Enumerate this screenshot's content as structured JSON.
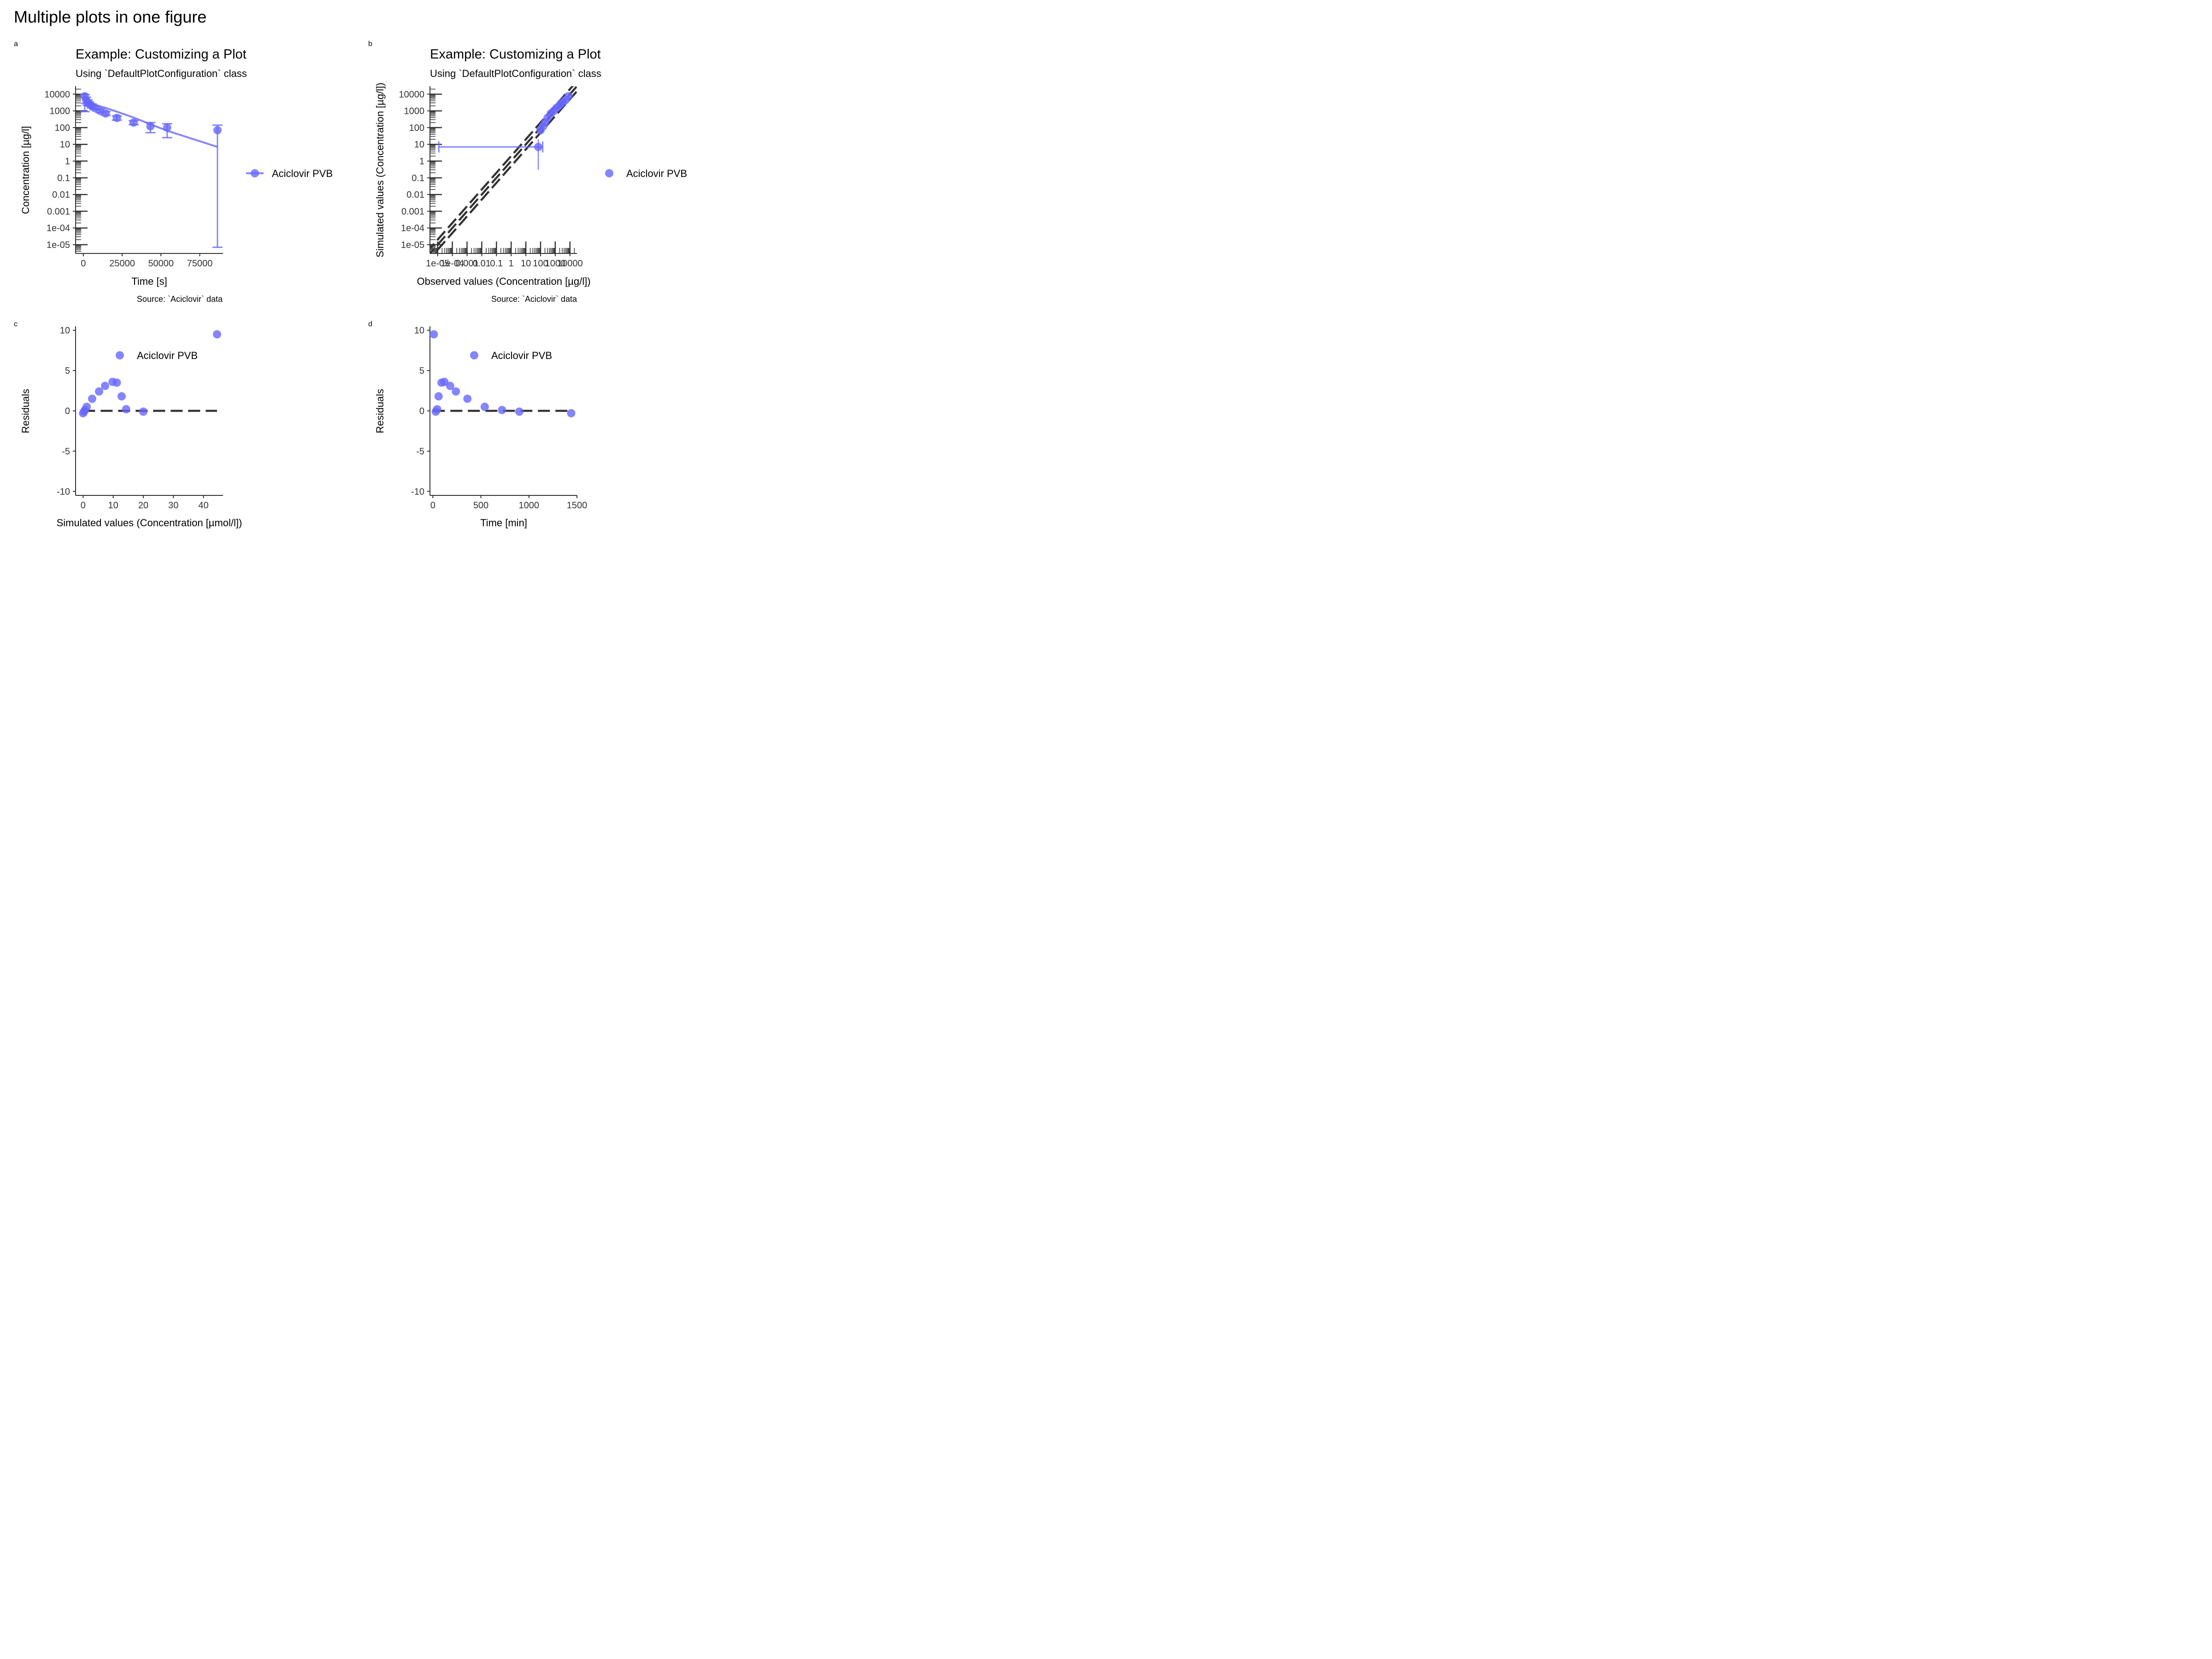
{
  "figure": {
    "title": "Multiple plots in one figure"
  },
  "colors": {
    "series": "#6666ff",
    "axis": "#333333",
    "identity": "#333333"
  },
  "chart_data": [
    {
      "tag": "a",
      "type": "line",
      "title": "Example: Customizing a Plot",
      "subtitle": "Using `DefaultPlotConfiguration` class",
      "caption": "Source: `Aciclovir` data",
      "xlabel": "Time [s]",
      "ylabel": "Concentration [µg/l]",
      "y_scale": "log10",
      "xlim": [
        -5000,
        90000
      ],
      "ylim": [
        3e-06,
        30000
      ],
      "xticks": [
        {
          "v": 0,
          "label": "0"
        },
        {
          "v": 25000,
          "label": "25000"
        },
        {
          "v": 50000,
          "label": "50000"
        },
        {
          "v": 75000,
          "label": "75000"
        }
      ],
      "yticks": [
        {
          "v": 10000,
          "label": "10000"
        },
        {
          "v": 1000,
          "label": "1000"
        },
        {
          "v": 100,
          "label": "100"
        },
        {
          "v": 10,
          "label": "10"
        },
        {
          "v": 1,
          "label": "1"
        },
        {
          "v": 0.1,
          "label": "0.1"
        },
        {
          "v": 0.01,
          "label": "0.01"
        },
        {
          "v": 0.001,
          "label": "0.001"
        },
        {
          "v": 0.0001,
          "label": "1e-04"
        },
        {
          "v": 1e-05,
          "label": "1e-05"
        }
      ],
      "legend": {
        "position": "right",
        "entries": [
          "Aciclovir PVB"
        ]
      },
      "series": [
        {
          "name": "Aciclovir PVB",
          "line": {
            "x": [
              0,
              900,
              1800,
              3600,
              5400,
              7200,
              10800,
              14400,
              21600,
              32400,
              43200,
              54000,
              86400
            ],
            "y": [
              8000,
              6000,
              4500,
              3400,
              2800,
              2400,
              1900,
              1500,
              900,
              400,
              160,
              65,
              7
            ]
          },
          "points": [
            {
              "x": 900,
              "y": 7500,
              "lo": 900,
              "hi": 9500
            },
            {
              "x": 1800,
              "y": 4500,
              "lo": 2800,
              "hi": 6500
            },
            {
              "x": 2700,
              "y": 3300,
              "lo": 2200,
              "hi": 4500
            },
            {
              "x": 3600,
              "y": 2700,
              "lo": 2000,
              "hi": 3500
            },
            {
              "x": 5400,
              "y": 2000,
              "lo": 1500,
              "hi": 2600
            },
            {
              "x": 7200,
              "y": 1500,
              "lo": 1200,
              "hi": 1900
            },
            {
              "x": 10800,
              "y": 1000,
              "lo": 800,
              "hi": 1300
            },
            {
              "x": 14400,
              "y": 700,
              "lo": 550,
              "hi": 900
            },
            {
              "x": 21600,
              "y": 380,
              "lo": 280,
              "hi": 500
            },
            {
              "x": 32400,
              "y": 200,
              "lo": 150,
              "hi": 260
            },
            {
              "x": 43200,
              "y": 120,
              "lo": 50,
              "hi": 200
            },
            {
              "x": 54000,
              "y": 100,
              "lo": 25,
              "hi": 170
            },
            {
              "x": 86400,
              "y": 70,
              "lo": 7e-06,
              "hi": 140
            }
          ]
        }
      ]
    },
    {
      "tag": "b",
      "type": "scatter",
      "title": "Example: Customizing a Plot",
      "subtitle": "Using `DefaultPlotConfiguration` class",
      "caption": "Source: `Aciclovir` data",
      "xlabel": "Observed values (Concentration [µg/l])",
      "ylabel": "Simulated values (Concentration [µg/l])",
      "x_scale": "log10",
      "y_scale": "log10",
      "xlim": [
        3e-06,
        30000
      ],
      "ylim": [
        3e-06,
        30000
      ],
      "xticks": [
        {
          "v": 1e-05,
          "label": "1e-05"
        },
        {
          "v": 0.0001,
          "label": "1e-04"
        },
        {
          "v": 0.001,
          "label": "0.001"
        },
        {
          "v": 0.01,
          "label": "0.01"
        },
        {
          "v": 0.1,
          "label": "0.1"
        },
        {
          "v": 1,
          "label": "1"
        },
        {
          "v": 10,
          "label": "10"
        },
        {
          "v": 100,
          "label": "100"
        },
        {
          "v": 1000,
          "label": "1000"
        },
        {
          "v": 10000,
          "label": "10000"
        }
      ],
      "yticks": [
        {
          "v": 10000,
          "label": "10000"
        },
        {
          "v": 1000,
          "label": "1000"
        },
        {
          "v": 100,
          "label": "100"
        },
        {
          "v": 10,
          "label": "10"
        },
        {
          "v": 1,
          "label": "1"
        },
        {
          "v": 0.1,
          "label": "0.1"
        },
        {
          "v": 0.01,
          "label": "0.01"
        },
        {
          "v": 0.001,
          "label": "0.001"
        },
        {
          "v": 0.0001,
          "label": "1e-04"
        },
        {
          "v": 1e-05,
          "label": "1e-05"
        }
      ],
      "identity_lines": {
        "factors": [
          0.5,
          1,
          2
        ]
      },
      "legend": {
        "position": "right",
        "entries": [
          "Aciclovir PVB"
        ]
      },
      "series": [
        {
          "name": "Aciclovir PVB",
          "points": [
            {
              "x": 70,
              "y": 7,
              "xlo": 1.2e-05,
              "xhi": 140,
              "ylo": 0.3,
              "yhi": 20
            },
            {
              "x": 100,
              "y": 70,
              "ylo": 40,
              "yhi": 150
            },
            {
              "x": 150,
              "y": 120,
              "ylo": 80,
              "yhi": 200
            },
            {
              "x": 200,
              "y": 200,
              "ylo": 120,
              "yhi": 300
            },
            {
              "x": 300,
              "y": 380,
              "ylo": 250,
              "yhi": 500
            },
            {
              "x": 500,
              "y": 700,
              "ylo": 500,
              "yhi": 900
            },
            {
              "x": 800,
              "y": 1000,
              "ylo": 700,
              "yhi": 1400
            },
            {
              "x": 1200,
              "y": 1500,
              "ylo": 1100,
              "yhi": 2000
            },
            {
              "x": 1800,
              "y": 2000,
              "ylo": 1400,
              "yhi": 2700
            },
            {
              "x": 2500,
              "y": 2700,
              "ylo": 2000,
              "yhi": 3600
            },
            {
              "x": 3500,
              "y": 3400,
              "ylo": 2400,
              "yhi": 4500
            },
            {
              "x": 5000,
              "y": 4500,
              "ylo": 3200,
              "yhi": 6000
            },
            {
              "x": 8000,
              "y": 7500,
              "ylo": 5500,
              "yhi": 9500
            }
          ]
        }
      ]
    },
    {
      "tag": "c",
      "type": "scatter",
      "xlabel": "Simulated values (Concentration [µmol/l])",
      "ylabel": "Residuals",
      "xlim": [
        -2.5,
        46.5
      ],
      "ylim": [
        -10.5,
        10.5
      ],
      "xticks": [
        {
          "v": 0,
          "label": "0"
        },
        {
          "v": 10,
          "label": "10"
        },
        {
          "v": 20,
          "label": "20"
        },
        {
          "v": 30,
          "label": "30"
        },
        {
          "v": 40,
          "label": "40"
        }
      ],
      "yticks": [
        {
          "v": 10,
          "label": "10"
        },
        {
          "v": 5,
          "label": "5"
        },
        {
          "v": 0,
          "label": "0"
        },
        {
          "v": -5,
          "label": "-5"
        },
        {
          "v": -10,
          "label": "-10"
        }
      ],
      "reference_line": {
        "y": 0,
        "x_from": 0,
        "x_to": 44.5
      },
      "legend": {
        "position": "top-right",
        "entries": [
          "Aciclovir PVB"
        ]
      },
      "series": [
        {
          "name": "Aciclovir PVB",
          "x": [
            0,
            0.3,
            0.6,
            1.2,
            3,
            5.3,
            7.3,
            9.8,
            11.2,
            12.8,
            14.3,
            20,
            44.5
          ],
          "y": [
            -0.3,
            -0.1,
            0.1,
            0.5,
            1.5,
            2.4,
            3.1,
            3.6,
            3.5,
            1.8,
            0.2,
            -0.1,
            9.5
          ]
        }
      ]
    },
    {
      "tag": "d",
      "type": "scatter",
      "xlabel": "Time [min]",
      "ylabel": "Residuals",
      "xlim": [
        -30,
        1500
      ],
      "ylim": [
        -10.5,
        10.5
      ],
      "xticks": [
        {
          "v": 0,
          "label": "0"
        },
        {
          "v": 500,
          "label": "500"
        },
        {
          "v": 1000,
          "label": "1000"
        },
        {
          "v": 1500,
          "label": "1500"
        }
      ],
      "yticks": [
        {
          "v": 10,
          "label": "10"
        },
        {
          "v": 5,
          "label": "5"
        },
        {
          "v": 0,
          "label": "0"
        },
        {
          "v": -5,
          "label": "-5"
        },
        {
          "v": -10,
          "label": "-10"
        }
      ],
      "reference_line": {
        "y": 0,
        "x_from": 0,
        "x_to": 1440
      },
      "legend": {
        "position": "top-right",
        "entries": [
          "Aciclovir PVB"
        ]
      },
      "series": [
        {
          "name": "Aciclovir PVB",
          "x": [
            10,
            30,
            45,
            60,
            90,
            120,
            180,
            240,
            360,
            540,
            720,
            900,
            1440
          ],
          "y": [
            9.5,
            -0.1,
            0.2,
            1.8,
            3.5,
            3.6,
            3.1,
            2.4,
            1.5,
            0.5,
            0.1,
            -0.1,
            -0.3
          ]
        }
      ]
    }
  ]
}
